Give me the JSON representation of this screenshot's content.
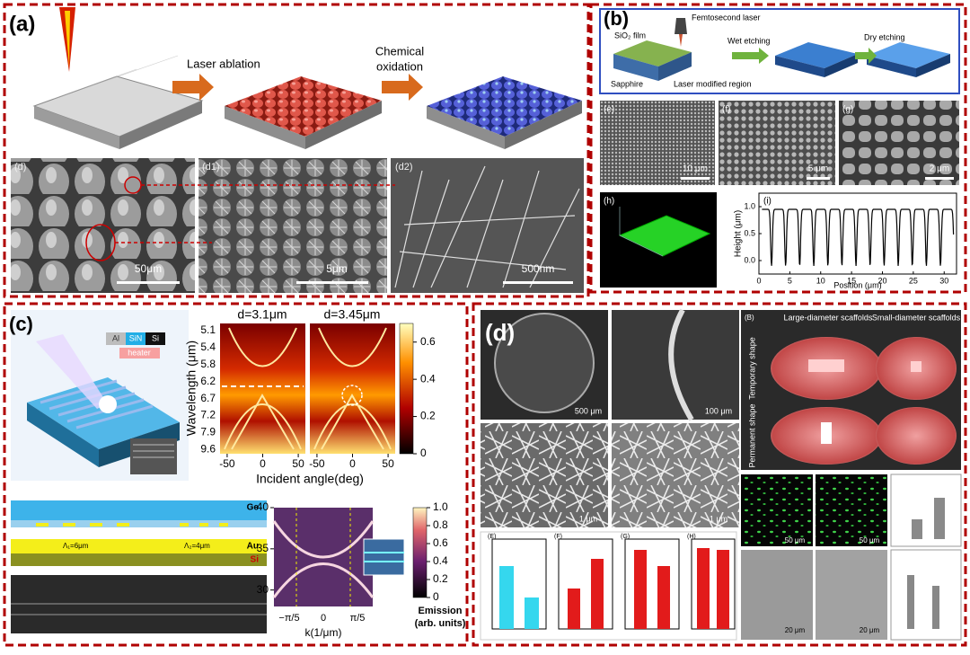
{
  "panel_a": {
    "label": "(a)",
    "step1": "Laser ablation",
    "step2": [
      "Chemical",
      "oxidation"
    ],
    "images": [
      {
        "label": "(d)",
        "scale": "50μm"
      },
      {
        "label": "(d1)",
        "scale": "5μm"
      },
      {
        "label": "(d2)",
        "scale": "500nm"
      }
    ]
  },
  "panel_b": {
    "label": "(b)",
    "schematic": {
      "laser": "Femtosecond laser",
      "film": "SiO₂ film",
      "substrate": "Sapphire",
      "region": "Laser modified region",
      "wet": "Wet etching",
      "dry": "Dry etching"
    },
    "images": [
      {
        "label": "(e)",
        "scale": "10 μm"
      },
      {
        "label": "(f)",
        "scale": "5 μm"
      },
      {
        "label": "(g)",
        "scale": "2 μm"
      }
    ],
    "map_label": "(h)",
    "profile": {
      "label": "(i)",
      "y_label": "Height (μm)",
      "x_label": "Position (μm)",
      "xlim": [
        0,
        32
      ],
      "ylim": [
        -0.25,
        1.25
      ],
      "xticks": [
        0,
        5,
        10,
        15,
        20,
        25,
        30
      ],
      "yticks": [
        {
          "value": 0,
          "label": "0.0"
        },
        {
          "value": 0.5,
          "label": "0.5"
        },
        {
          "value": 1,
          "label": "1.0"
        }
      ]
    }
  },
  "panel_c": {
    "label": "(c)",
    "legend": [
      "Al",
      "SiN",
      "Si"
    ],
    "heater": "heater",
    "maps": {
      "titles": [
        "d=3.1μm",
        "d=3.45μm"
      ],
      "y_label": "Wavelength (μm)",
      "yticks": [
        "5.1",
        "5.4",
        "5.8",
        "6.2",
        "6.7",
        "7.2",
        "7.9",
        "9.6"
      ],
      "x_label": "Incident angle(deg)",
      "xlim": [
        -60,
        60
      ],
      "xticks": [
        -50,
        0,
        50
      ],
      "colorbar_lim": [
        0,
        0.7
      ],
      "colorbar_ticks": [
        0,
        0.2,
        0.4,
        0.6
      ]
    },
    "layers": [
      "Ge",
      "Au",
      "Si"
    ],
    "periods": [
      "Λ₁=6μm",
      "Λ₂=4μm"
    ],
    "band": {
      "ylim": [
        28,
        40
      ],
      "yticks": [
        30,
        35,
        40
      ],
      "xticks": [
        "−π/5",
        "0",
        "π/5"
      ],
      "x_label": "k(1/μm)",
      "colorbar_lim": [
        0,
        1
      ],
      "colorbar_ticks": [
        0,
        {
          "value": 0.2,
          "label": "0.2"
        },
        {
          "value": 0.4,
          "label": "0.4"
        },
        {
          "value": 0.6,
          "label": "0.6"
        },
        {
          "value": 0.8,
          "label": "0.8"
        },
        {
          "value": 1,
          "label": "1.0"
        }
      ],
      "colorbar_label": [
        "Emission",
        "(arb. units)"
      ]
    }
  },
  "panel_d": {
    "label": "(d)",
    "sem_scales": [
      "500 μm",
      "100 μm",
      "1 μm",
      "1 μm"
    ],
    "photos": {
      "label": "(B)",
      "columns": [
        "Large-diameter scaffolds",
        "Small-diameter scaffolds"
      ],
      "rows": [
        "Temporary shape",
        "Permanent shape"
      ]
    },
    "cell_scales": [
      "50 μm",
      "50 μm",
      "20 μm",
      "20 μm"
    ],
    "chart_labels": [
      "(E)",
      "(F)",
      "(G)",
      "(H)"
    ]
  }
}
